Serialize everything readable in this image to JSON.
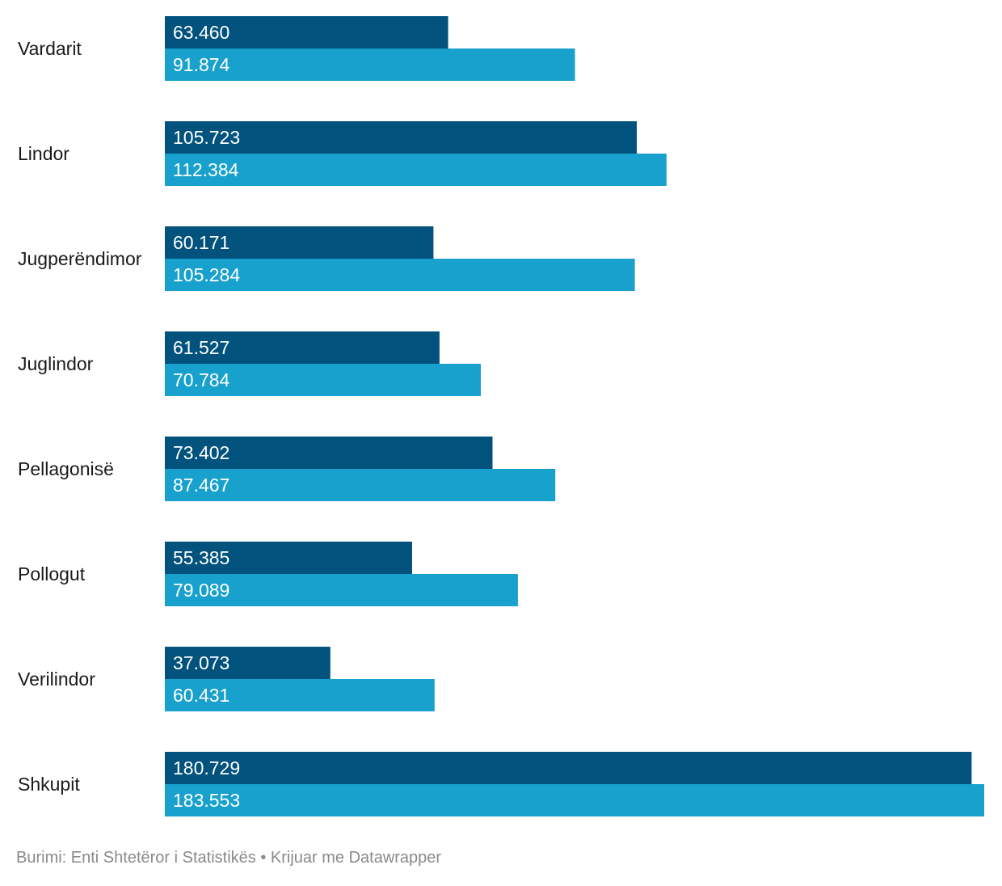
{
  "chart_data": {
    "type": "bar",
    "orientation": "horizontal",
    "grouped": true,
    "categories": [
      "Vardarit",
      "Lindor",
      "Jugperëndimor",
      "Juglindor",
      "Pellagonisë",
      "Pollogut",
      "Verilindor",
      "Shkupit"
    ],
    "series": [
      {
        "color": "#01527c",
        "values": [
          63460,
          105723,
          60171,
          61527,
          73402,
          55385,
          37073,
          180729
        ],
        "labels": [
          "63.460",
          "105.723",
          "60.171",
          "61.527",
          "73.402",
          "55.385",
          "37.073",
          "180.729"
        ]
      },
      {
        "color": "#18a1cd",
        "values": [
          91874,
          112384,
          105284,
          70784,
          87467,
          79089,
          60431,
          183553
        ],
        "labels": [
          "91.874",
          "112.384",
          "105.284",
          "70.784",
          "87.467",
          "79.089",
          "60.431",
          "183.553"
        ]
      }
    ],
    "xlim": [
      0,
      183553
    ],
    "grid": false,
    "legend": "none"
  },
  "footer": {
    "text": "Burimi: Enti Shtetëror i Statistikës • Krijuar me Datawrapper"
  }
}
